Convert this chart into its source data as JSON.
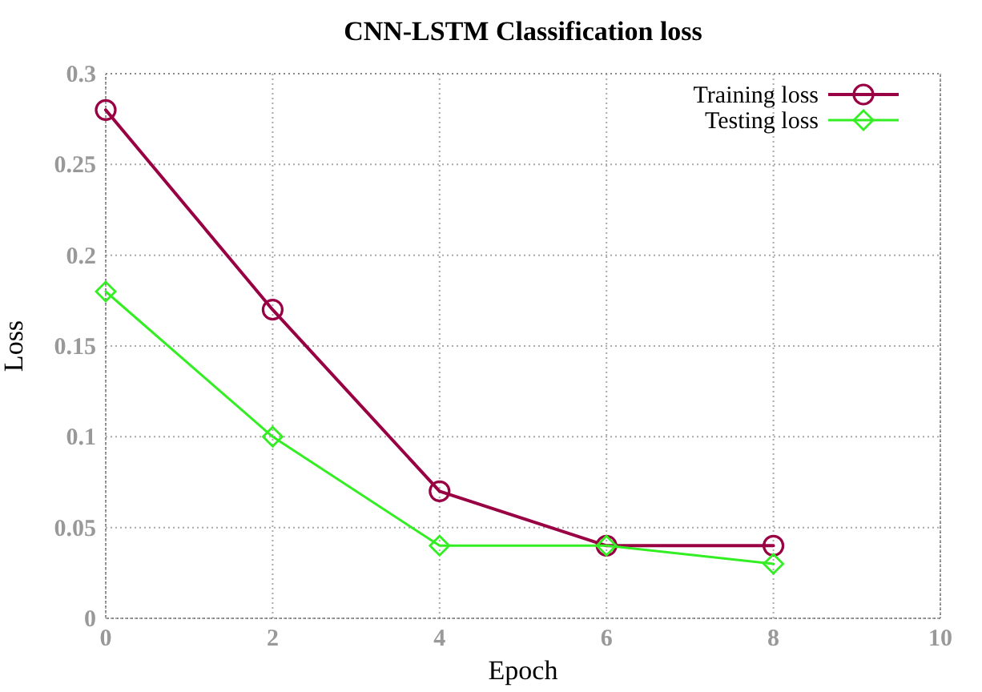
{
  "chart_data": {
    "type": "line",
    "title": "CNN-LSTM Classification loss",
    "xlabel": "Epoch",
    "ylabel": "Loss",
    "x": [
      0,
      2,
      4,
      6,
      8
    ],
    "series": [
      {
        "name": "Training loss",
        "color": "#990044",
        "values": [
          0.28,
          0.17,
          0.07,
          0.04,
          0.04
        ],
        "marker": "circle"
      },
      {
        "name": "Testing loss",
        "color": "#33ee22",
        "values": [
          0.18,
          0.1,
          0.04,
          0.04,
          0.03
        ],
        "marker": "diamond"
      }
    ],
    "xlim": [
      0,
      10
    ],
    "xticks": [
      0,
      2,
      4,
      6,
      8,
      10
    ],
    "ylim": [
      0,
      0.3
    ],
    "yticks": [
      0,
      0.05,
      0.1,
      0.15,
      0.2,
      0.25,
      0.3
    ],
    "grid": true,
    "legend": "top right",
    "line_style": "solid"
  }
}
